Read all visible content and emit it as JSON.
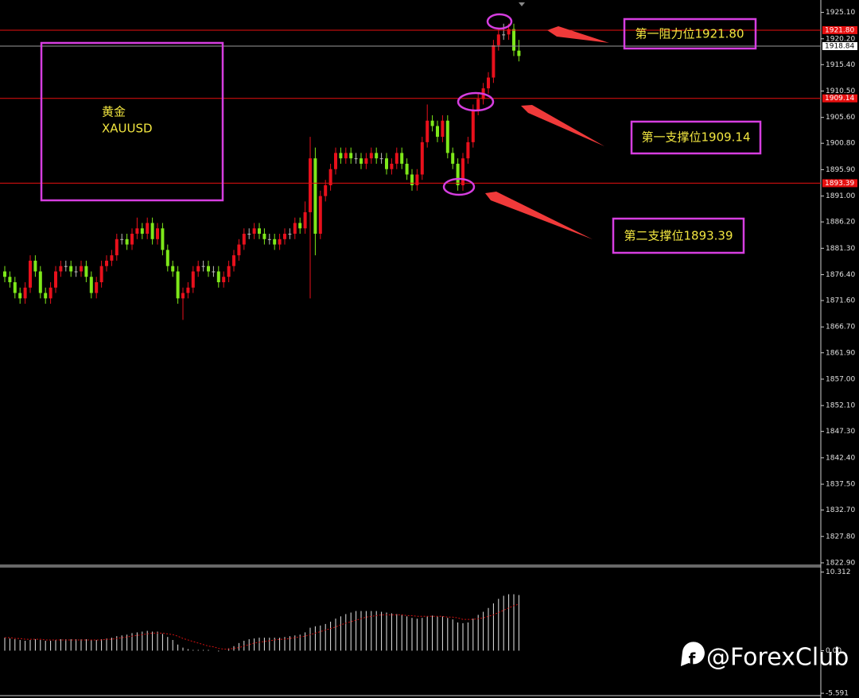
{
  "chart_data": [
    {
      "type": "candlestick",
      "open": [
        1877,
        1876,
        1875,
        1873,
        1872,
        1874,
        1879,
        1877,
        1873,
        1872,
        1874,
        1877,
        1878,
        1878,
        1877,
        1877,
        1878,
        1876,
        1873,
        1875,
        1878,
        1879,
        1880,
        1883,
        1883,
        1882,
        1884,
        1885,
        1884,
        1886,
        1883,
        1885,
        1881,
        1878,
        1877,
        1872,
        1873,
        1874,
        1877,
        1878,
        1878,
        1877,
        1877,
        1875,
        1876,
        1878,
        1880,
        1882,
        1884,
        1884,
        1885,
        1884,
        1883,
        1883,
        1882,
        1883,
        1884,
        1884,
        1886,
        1885,
        1888,
        1898,
        1884,
        1891,
        1893,
        1896,
        1899,
        1898,
        1899,
        1898,
        1898,
        1897,
        1898,
        1899,
        1898,
        1898,
        1896,
        1897,
        1899,
        1897,
        1895,
        1893,
        1895,
        1901,
        1905,
        1904,
        1902,
        1905,
        1899,
        1897,
        1893,
        1898,
        1901,
        1907,
        1909,
        1911,
        1913,
        1919,
        1921,
        1921,
        1922,
        1918
      ],
      "high": [
        1878,
        1877,
        1876,
        1874,
        1875,
        1880,
        1880,
        1878,
        1874,
        1875,
        1878,
        1879,
        1879,
        1879,
        1878,
        1879,
        1879,
        1877,
        1876,
        1879,
        1880,
        1881,
        1884,
        1884,
        1884,
        1885,
        1887,
        1886,
        1887,
        1887,
        1886,
        1886,
        1882,
        1879,
        1878,
        1874,
        1875,
        1878,
        1879,
        1879,
        1879,
        1878,
        1878,
        1877,
        1879,
        1881,
        1883,
        1885,
        1885,
        1886,
        1886,
        1885,
        1884,
        1884,
        1884,
        1885,
        1885,
        1887,
        1887,
        1890,
        1902,
        1900,
        1892,
        1894,
        1897,
        1900,
        1900,
        1900,
        1900,
        1899,
        1899,
        1899,
        1900,
        1900,
        1899,
        1899,
        1898,
        1900,
        1900,
        1898,
        1896,
        1896,
        1902,
        1908,
        1906,
        1905,
        1906,
        1906,
        1900,
        1898,
        1899,
        1902,
        1908,
        1910,
        1912,
        1914,
        1920,
        1922,
        1923,
        1923,
        1923,
        1920
      ],
      "low": [
        1875,
        1874,
        1872,
        1871,
        1871,
        1873,
        1876,
        1872,
        1871,
        1871,
        1873,
        1876,
        1877,
        1876,
        1876,
        1876,
        1875,
        1872,
        1872,
        1874,
        1877,
        1878,
        1879,
        1882,
        1881,
        1881,
        1883,
        1883,
        1883,
        1882,
        1882,
        1880,
        1877,
        1876,
        1871,
        1868,
        1872,
        1873,
        1876,
        1877,
        1876,
        1876,
        1874,
        1874,
        1875,
        1877,
        1879,
        1881,
        1883,
        1883,
        1883,
        1882,
        1882,
        1881,
        1881,
        1882,
        1883,
        1883,
        1884,
        1884,
        1872,
        1880,
        1883,
        1890,
        1892,
        1895,
        1897,
        1897,
        1897,
        1897,
        1896,
        1896,
        1897,
        1897,
        1897,
        1895,
        1895,
        1896,
        1896,
        1894,
        1892,
        1892,
        1894,
        1900,
        1903,
        1901,
        1901,
        1898,
        1896,
        1892,
        1892,
        1897,
        1900,
        1906,
        1908,
        1910,
        1912,
        1918,
        1920,
        1920,
        1917,
        1916
      ],
      "close": [
        1876,
        1875,
        1873,
        1872,
        1874,
        1879,
        1877,
        1873,
        1872,
        1874,
        1877,
        1878,
        1878,
        1877,
        1877,
        1878,
        1876,
        1873,
        1875,
        1878,
        1879,
        1880,
        1883,
        1883,
        1882,
        1884,
        1885,
        1884,
        1886,
        1883,
        1885,
        1881,
        1878,
        1877,
        1872,
        1873,
        1874,
        1877,
        1878,
        1878,
        1877,
        1877,
        1875,
        1876,
        1878,
        1880,
        1882,
        1884,
        1884,
        1885,
        1884,
        1883,
        1883,
        1882,
        1883,
        1884,
        1884,
        1886,
        1885,
        1888,
        1898,
        1884,
        1891,
        1893,
        1896,
        1899,
        1898,
        1899,
        1898,
        1898,
        1897,
        1898,
        1899,
        1898,
        1898,
        1896,
        1897,
        1899,
        1897,
        1895,
        1893,
        1895,
        1901,
        1905,
        1904,
        1902,
        1905,
        1899,
        1897,
        1893,
        1898,
        1901,
        1907,
        1909,
        1911,
        1913,
        1919,
        1921,
        1921,
        1922,
        1918,
        1917
      ],
      "up_color": "#e8101c",
      "down_color": "#7ee81a",
      "flat_color": "#bbbbbb",
      "ylim": [
        1822.6,
        1927.4
      ],
      "yticks": [
        {
          "value": 1925.1,
          "label": "1925.10"
        },
        {
          "value": 1920.2,
          "label": "1920.20"
        },
        {
          "value": 1915.4,
          "label": "1915.40"
        },
        {
          "value": 1910.5,
          "label": "1910.50"
        },
        {
          "value": 1905.6,
          "label": "1905.60"
        },
        {
          "value": 1900.8,
          "label": "1900.80"
        },
        {
          "value": 1895.9,
          "label": "1895.90"
        },
        {
          "value": 1891,
          "label": "1891.00"
        },
        {
          "value": 1886.2,
          "label": "1886.20"
        },
        {
          "value": 1881.3,
          "label": "1881.30"
        },
        {
          "value": 1876.4,
          "label": "1876.40"
        },
        {
          "value": 1871.6,
          "label": "1871.60"
        },
        {
          "value": 1866.7,
          "label": "1866.70"
        },
        {
          "value": 1861.9,
          "label": "1861.90"
        },
        {
          "value": 1857,
          "label": "1857.00"
        },
        {
          "value": 1852.1,
          "label": "1852.10"
        },
        {
          "value": 1847.3,
          "label": "1847.30"
        },
        {
          "value": 1842.4,
          "label": "1842.40"
        },
        {
          "value": 1837.5,
          "label": "1837.50"
        },
        {
          "value": 1832.7,
          "label": "1832.70"
        },
        {
          "value": 1827.8,
          "label": "1827.80"
        },
        {
          "value": 1822.9,
          "label": "1822.90"
        }
      ],
      "levels": [
        {
          "value": 1921.8,
          "label": "1921.80",
          "color": "#e81010"
        },
        {
          "value": 1918.84,
          "label": "1918.84",
          "color": "#9a9a9a"
        },
        {
          "value": 1909.14,
          "label": "1909.14",
          "color": "#e81010"
        },
        {
          "value": 1893.39,
          "label": "1893.39",
          "color": "#e81010"
        }
      ]
    },
    {
      "type": "macd",
      "histogram": [
        1.7,
        1.6,
        1.5,
        1.4,
        1.3,
        1.4,
        1.5,
        1.4,
        1.3,
        1.3,
        1.4,
        1.5,
        1.5,
        1.5,
        1.5,
        1.5,
        1.5,
        1.4,
        1.4,
        1.5,
        1.6,
        1.7,
        1.9,
        2.0,
        2.1,
        2.3,
        2.4,
        2.5,
        2.6,
        2.5,
        2.5,
        2.2,
        1.8,
        1.4,
        0.8,
        0.4,
        0.2,
        0.1,
        0.1,
        0.1,
        0.1,
        0.0,
        -0.1,
        0.0,
        0.3,
        0.6,
        1.0,
        1.3,
        1.5,
        1.6,
        1.7,
        1.7,
        1.7,
        1.7,
        1.7,
        1.8,
        1.9,
        2.0,
        2.1,
        2.4,
        3.0,
        3.2,
        3.3,
        3.5,
        3.8,
        4.2,
        4.5,
        4.8,
        5.0,
        5.2,
        5.2,
        5.2,
        5.2,
        5.2,
        5.1,
        5.0,
        4.9,
        4.8,
        4.7,
        4.5,
        4.3,
        4.2,
        4.3,
        4.5,
        4.6,
        4.5,
        4.5,
        4.3,
        4.1,
        3.7,
        3.6,
        3.7,
        4.2,
        4.7,
        5.1,
        5.6,
        6.2,
        6.8,
        7.2,
        7.4,
        7.4,
        7.3
      ],
      "signal": [
        1.7,
        1.7,
        1.6,
        1.6,
        1.5,
        1.5,
        1.5,
        1.5,
        1.4,
        1.4,
        1.4,
        1.4,
        1.4,
        1.4,
        1.4,
        1.4,
        1.4,
        1.4,
        1.4,
        1.4,
        1.5,
        1.5,
        1.6,
        1.7,
        1.8,
        1.9,
        2.0,
        2.1,
        2.2,
        2.3,
        2.3,
        2.3,
        2.2,
        2.1,
        1.9,
        1.6,
        1.4,
        1.2,
        1.0,
        0.8,
        0.6,
        0.5,
        0.3,
        0.2,
        0.2,
        0.3,
        0.4,
        0.6,
        0.8,
        1.0,
        1.1,
        1.2,
        1.3,
        1.4,
        1.5,
        1.5,
        1.6,
        1.7,
        1.8,
        1.9,
        2.1,
        2.3,
        2.5,
        2.7,
        2.9,
        3.1,
        3.4,
        3.6,
        3.8,
        4.0,
        4.2,
        4.4,
        4.5,
        4.6,
        4.7,
        4.7,
        4.7,
        4.7,
        4.7,
        4.6,
        4.6,
        4.5,
        4.5,
        4.5,
        4.5,
        4.5,
        4.5,
        4.4,
        4.4,
        4.3,
        4.1,
        4.1,
        4.1,
        4.2,
        4.3,
        4.5,
        4.7,
        5.0,
        5.3,
        5.6,
        5.9,
        6.1
      ],
      "bar_color": "#e8e8e8",
      "signal_color": "#d01010",
      "ylim": [
        -5.9,
        11.0
      ],
      "yticks": [
        10.312,
        {
          "value": 0,
          "label": "0.00"
        },
        -5.591
      ]
    }
  ],
  "symbol_cn": "黄金",
  "symbol": "XAUUSD",
  "annotations": [
    "第一阻力位1921.80",
    "第一支撑位1909.14",
    "第二支撑位1893.39"
  ],
  "watermark": "@ForexClub"
}
